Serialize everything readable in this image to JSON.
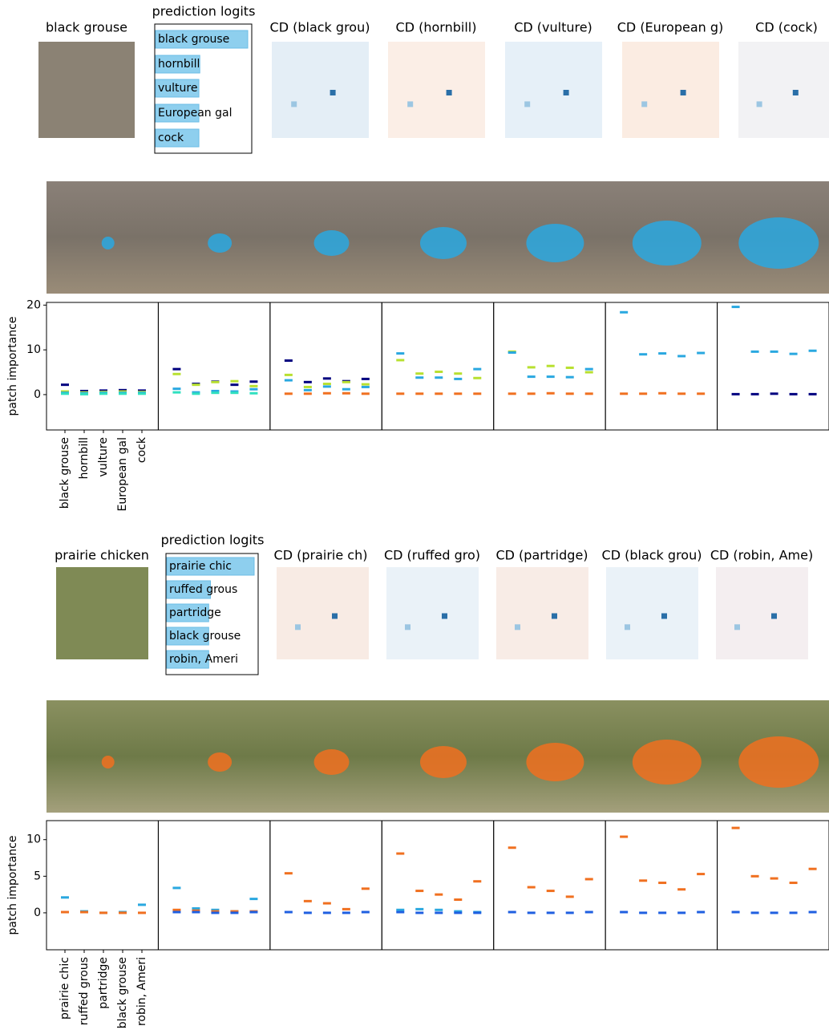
{
  "chart_data": [
    {
      "type": "dash",
      "image_title": "black grouse",
      "logits_title": "prediction logits",
      "categories": [
        "black grouse",
        "hornbill",
        "vulture",
        "European gal",
        "cock"
      ],
      "logits": [
        1.0,
        0.48,
        0.47,
        0.47,
        0.47
      ],
      "cd_titles": [
        "CD (black grou)",
        "CD (hornbill)",
        "CD (vulture)",
        "CD (European g)",
        "CD (cock)"
      ],
      "ylabel": "patch importance",
      "ylim": [
        -7.9,
        20.6
      ],
      "yticks": [
        0,
        10,
        20
      ],
      "subplots": [
        {
          "series": [
            {
              "color": "#00007f",
              "values": [
                2.2,
                0.8,
                0.9,
                1.0,
                0.9
              ]
            },
            {
              "color": "#b8e030",
              "values": [
                0.7,
                0.5,
                0.6,
                0.7,
                0.6
              ]
            },
            {
              "color": "#2aa8e0",
              "values": [
                0.4,
                0.3,
                0.4,
                0.4,
                0.4
              ]
            },
            {
              "color": "#30e0c0",
              "values": [
                0.2,
                0.1,
                0.2,
                0.2,
                0.2
              ]
            }
          ]
        },
        {
          "series": [
            {
              "color": "#00007f",
              "values": [
                5.7,
                2.4,
                2.9,
                2.2,
                2.9
              ]
            },
            {
              "color": "#b8e030",
              "values": [
                4.6,
                2.2,
                2.8,
                3.0,
                1.9
              ]
            },
            {
              "color": "#2aa8e0",
              "values": [
                1.3,
                0.5,
                0.8,
                0.7,
                1.2
              ]
            },
            {
              "color": "#30e0c0",
              "values": [
                0.5,
                0.2,
                0.4,
                0.4,
                0.3
              ]
            }
          ]
        },
        {
          "series": [
            {
              "color": "#00007f",
              "values": [
                7.6,
                2.8,
                3.6,
                3.0,
                3.5
              ]
            },
            {
              "color": "#b8e030",
              "values": [
                4.4,
                1.7,
                2.4,
                2.8,
                2.3
              ]
            },
            {
              "color": "#2aa8e0",
              "values": [
                3.2,
                1.0,
                1.8,
                1.2,
                1.7
              ]
            },
            {
              "color": "#f07020",
              "values": [
                0.2,
                0.2,
                0.3,
                0.3,
                0.2
              ]
            }
          ]
        },
        {
          "series": [
            {
              "color": "#2aa8e0",
              "values": [
                9.2,
                3.8,
                3.8,
                3.5,
                5.7
              ]
            },
            {
              "color": "#b8e030",
              "values": [
                7.7,
                4.7,
                5.1,
                4.7,
                3.7
              ]
            },
            {
              "color": "#f07020",
              "values": [
                0.2,
                0.2,
                0.2,
                0.2,
                0.2
              ]
            }
          ]
        },
        {
          "series": [
            {
              "color": "#b8e030",
              "values": [
                9.6,
                6.1,
                6.4,
                6.0,
                5.0
              ]
            },
            {
              "color": "#2aa8e0",
              "values": [
                9.4,
                4.0,
                4.0,
                3.9,
                5.7
              ]
            },
            {
              "color": "#f07020",
              "values": [
                0.2,
                0.2,
                0.3,
                0.2,
                0.2
              ]
            }
          ]
        },
        {
          "series": [
            {
              "color": "#2aa8e0",
              "values": [
                18.4,
                9.0,
                9.2,
                8.6,
                9.3
              ]
            },
            {
              "color": "#f07020",
              "values": [
                0.2,
                0.2,
                0.3,
                0.2,
                0.2
              ]
            }
          ]
        },
        {
          "series": [
            {
              "color": "#2aa8e0",
              "values": [
                19.6,
                9.6,
                9.6,
                9.1,
                9.8
              ]
            },
            {
              "color": "#00007f",
              "values": [
                0.1,
                0.1,
                0.2,
                0.1,
                0.1
              ]
            }
          ]
        }
      ]
    },
    {
      "type": "dash",
      "image_title": "prairie chicken",
      "logits_title": "prediction logits",
      "categories": [
        "prairie chic",
        "ruffed grous",
        "partridge",
        "black grouse",
        "robin, Ameri"
      ],
      "logits": [
        1.0,
        0.5,
        0.48,
        0.48,
        0.48
      ],
      "cd_titles": [
        "CD (prairie ch)",
        "CD (ruffed gro)",
        "CD (partridge)",
        "CD (black grou)",
        "CD (robin, Ame)"
      ],
      "ylabel": "patch importance",
      "ylim": [
        -5.05,
        12.6
      ],
      "yticks": [
        0,
        5,
        10
      ],
      "subplots": [
        {
          "series": [
            {
              "color": "#2aa8e0",
              "values": [
                2.1,
                0.2,
                0.0,
                0.1,
                1.1
              ]
            },
            {
              "color": "#f07020",
              "values": [
                0.1,
                0.1,
                0.0,
                0.0,
                0.0
              ]
            }
          ]
        },
        {
          "series": [
            {
              "color": "#2aa8e0",
              "values": [
                3.4,
                0.6,
                0.4,
                0.2,
                1.9
              ]
            },
            {
              "color": "#f07020",
              "values": [
                0.4,
                0.3,
                0.2,
                0.2,
                0.2
              ]
            },
            {
              "color": "#1f5fe0",
              "values": [
                0.1,
                0.1,
                0.0,
                0.0,
                0.1
              ]
            }
          ]
        },
        {
          "series": [
            {
              "color": "#f07020",
              "values": [
                5.4,
                1.6,
                1.3,
                0.5,
                3.3
              ]
            },
            {
              "color": "#1f5fe0",
              "values": [
                0.1,
                0.0,
                0.0,
                0.0,
                0.1
              ]
            }
          ]
        },
        {
          "series": [
            {
              "color": "#f07020",
              "values": [
                8.1,
                3.0,
                2.5,
                1.8,
                4.3
              ]
            },
            {
              "color": "#2aa8e0",
              "values": [
                0.4,
                0.5,
                0.4,
                0.2,
                0.1
              ]
            },
            {
              "color": "#1f5fe0",
              "values": [
                0.1,
                0.0,
                0.0,
                0.0,
                0.0
              ]
            }
          ]
        },
        {
          "series": [
            {
              "color": "#f07020",
              "values": [
                8.9,
                3.5,
                3.0,
                2.2,
                4.6
              ]
            },
            {
              "color": "#1f5fe0",
              "values": [
                0.1,
                0.0,
                0.0,
                0.0,
                0.1
              ]
            }
          ]
        },
        {
          "series": [
            {
              "color": "#f07020",
              "values": [
                10.4,
                4.4,
                4.1,
                3.2,
                5.3
              ]
            },
            {
              "color": "#1f5fe0",
              "values": [
                0.1,
                0.0,
                0.0,
                0.0,
                0.1
              ]
            }
          ]
        },
        {
          "series": [
            {
              "color": "#f07020",
              "values": [
                11.6,
                5.0,
                4.7,
                4.1,
                6.0
              ]
            },
            {
              "color": "#1f5fe0",
              "values": [
                0.1,
                0.0,
                0.0,
                0.0,
                0.1
              ]
            }
          ]
        }
      ]
    }
  ]
}
